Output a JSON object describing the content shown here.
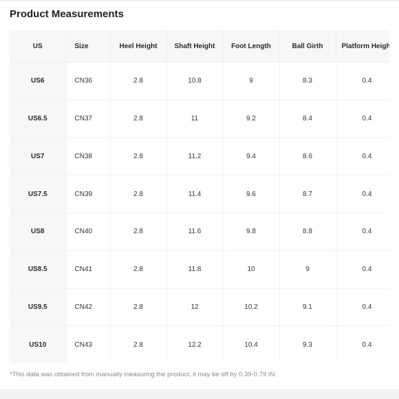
{
  "title": "Product Measurements",
  "table": {
    "headers": [
      "US",
      "Size",
      "Heel Height",
      "Shaft Height",
      "Foot Length",
      "Ball Girth",
      "Platform Height"
    ],
    "rows": [
      [
        "US6",
        "CN36",
        "2.8",
        "10.8",
        "9",
        "8.3",
        "0.4"
      ],
      [
        "US6.5",
        "CN37",
        "2.8",
        "11",
        "9.2",
        "8.4",
        "0.4"
      ],
      [
        "US7",
        "CN38",
        "2.8",
        "11.2",
        "9.4",
        "8.6",
        "0.4"
      ],
      [
        "US7.5",
        "CN39",
        "2.8",
        "11.4",
        "9.6",
        "8.7",
        "0.4"
      ],
      [
        "US8",
        "CN40",
        "2.8",
        "11.6",
        "9.8",
        "8.8",
        "0.4"
      ],
      [
        "US8.5",
        "CN41",
        "2.8",
        "11.8",
        "10",
        "9",
        "0.4"
      ],
      [
        "US9.5",
        "CN42",
        "2.8",
        "12",
        "10.2",
        "9.1",
        "0.4"
      ],
      [
        "US10",
        "CN43",
        "2.8",
        "12.2",
        "10.4",
        "9.3",
        "0.4"
      ]
    ]
  },
  "footnote": "*This data was obtained from manually measuring the product, it may be off by 0.39-0.79 IN."
}
